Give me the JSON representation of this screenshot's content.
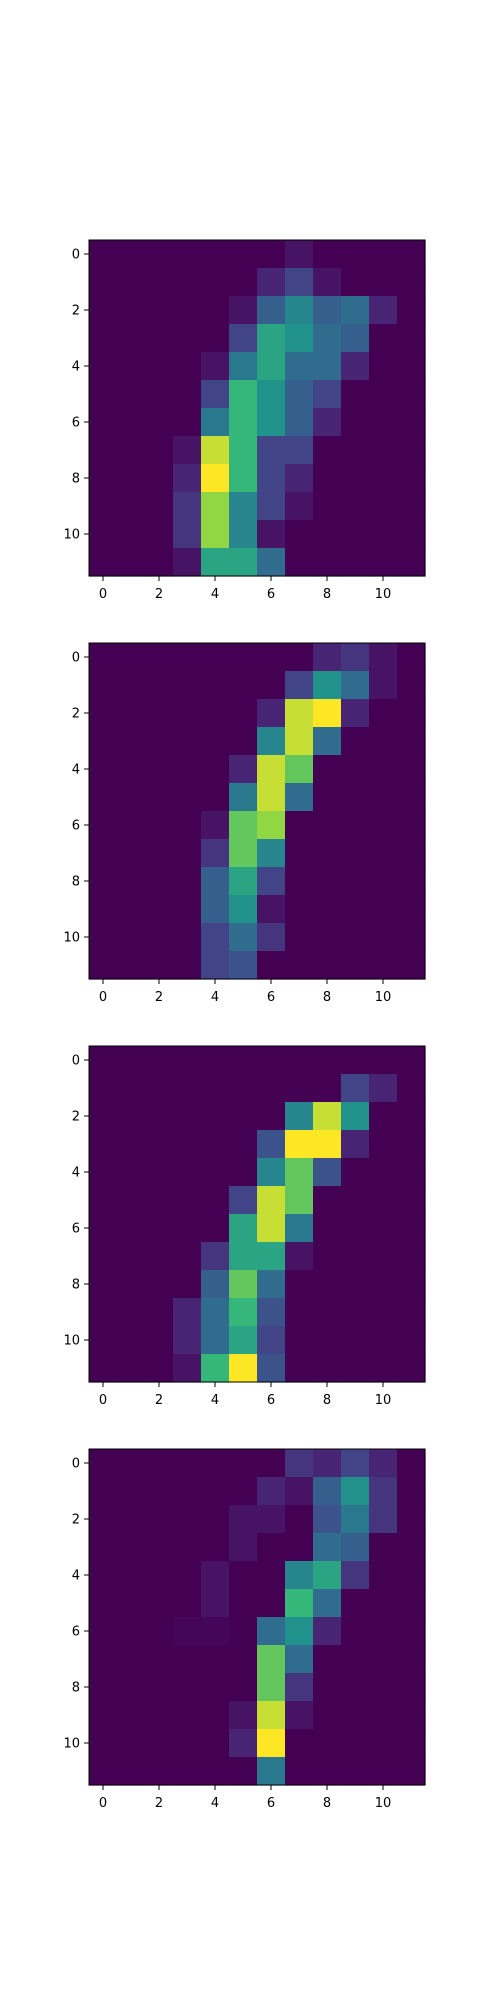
{
  "chart_data": [
    {
      "type": "heatmap",
      "colormap": "viridis",
      "value_range": [
        0,
        16
      ],
      "rows": 12,
      "cols": 12,
      "grid": false,
      "x_ticks": [
        0,
        2,
        4,
        6,
        8,
        10
      ],
      "y_ticks": [
        0,
        2,
        4,
        6,
        8,
        10
      ],
      "x_tick_labels": [
        "0",
        "2",
        "4",
        "6",
        "8",
        "10"
      ],
      "y_tick_labels": [
        "0",
        "2",
        "4",
        "6",
        "8",
        "10"
      ],
      "values": [
        [
          0,
          0,
          0,
          0,
          0,
          0,
          0,
          1,
          0,
          0,
          0,
          0
        ],
        [
          0,
          0,
          0,
          0,
          0,
          0,
          2,
          4,
          1,
          0,
          0,
          0
        ],
        [
          0,
          0,
          0,
          0,
          0,
          1,
          6,
          9,
          6,
          7,
          2,
          0
        ],
        [
          0,
          0,
          0,
          0,
          0,
          4,
          11,
          10,
          7,
          6,
          0,
          0
        ],
        [
          0,
          0,
          0,
          0,
          1,
          8,
          11,
          7,
          7,
          2,
          0,
          0
        ],
        [
          0,
          0,
          0,
          0,
          4,
          12,
          10,
          6,
          4,
          0,
          0,
          0
        ],
        [
          0,
          0,
          0,
          0,
          8,
          12,
          10,
          6,
          2,
          0,
          0,
          0
        ],
        [
          0,
          0,
          0,
          1,
          15,
          12,
          4,
          4,
          0,
          0,
          0,
          0
        ],
        [
          0,
          0,
          0,
          2,
          16,
          12,
          4,
          2,
          0,
          0,
          0,
          0
        ],
        [
          0,
          0,
          0,
          3,
          14,
          9,
          4,
          1,
          0,
          0,
          0,
          0
        ],
        [
          0,
          0,
          0,
          3,
          14,
          9,
          1,
          0,
          0,
          0,
          0,
          0
        ],
        [
          0,
          0,
          0,
          1,
          11,
          11,
          7,
          0,
          0,
          0,
          0,
          0
        ]
      ]
    },
    {
      "type": "heatmap",
      "colormap": "viridis",
      "value_range": [
        0,
        16
      ],
      "rows": 12,
      "cols": 12,
      "grid": false,
      "x_ticks": [
        0,
        2,
        4,
        6,
        8,
        10
      ],
      "y_ticks": [
        0,
        2,
        4,
        6,
        8,
        10
      ],
      "x_tick_labels": [
        "0",
        "2",
        "4",
        "6",
        "8",
        "10"
      ],
      "y_tick_labels": [
        "0",
        "2",
        "4",
        "6",
        "8",
        "10"
      ],
      "values": [
        [
          0,
          0,
          0,
          0,
          0,
          0,
          0,
          0,
          2,
          3,
          1,
          0
        ],
        [
          0,
          0,
          0,
          0,
          0,
          0,
          0,
          4,
          10,
          7,
          1,
          0
        ],
        [
          0,
          0,
          0,
          0,
          0,
          0,
          2,
          15,
          16,
          2,
          0,
          0
        ],
        [
          0,
          0,
          0,
          0,
          0,
          0,
          9,
          15,
          7,
          0,
          0,
          0
        ],
        [
          0,
          0,
          0,
          0,
          0,
          2,
          15,
          13,
          0,
          0,
          0,
          0
        ],
        [
          0,
          0,
          0,
          0,
          0,
          8,
          15,
          7,
          0,
          0,
          0,
          0
        ],
        [
          0,
          0,
          0,
          0,
          1,
          13,
          14,
          0,
          0,
          0,
          0,
          0
        ],
        [
          0,
          0,
          0,
          0,
          3,
          13,
          9,
          0,
          0,
          0,
          0,
          0
        ],
        [
          0,
          0,
          0,
          0,
          6,
          11,
          4,
          0,
          0,
          0,
          0,
          0
        ],
        [
          0,
          0,
          0,
          0,
          6,
          10,
          1,
          0,
          0,
          0,
          0,
          0
        ],
        [
          0,
          0,
          0,
          0,
          4,
          7,
          3,
          0,
          0,
          0,
          0,
          0
        ],
        [
          0,
          0,
          0,
          0,
          4,
          5,
          0,
          0,
          0,
          0,
          0,
          0
        ]
      ]
    },
    {
      "type": "heatmap",
      "colormap": "viridis",
      "value_range": [
        0,
        16
      ],
      "rows": 12,
      "cols": 12,
      "grid": false,
      "x_ticks": [
        0,
        2,
        4,
        6,
        8,
        10
      ],
      "y_ticks": [
        0,
        2,
        4,
        6,
        8,
        10
      ],
      "x_tick_labels": [
        "0",
        "2",
        "4",
        "6",
        "8",
        "10"
      ],
      "y_tick_labels": [
        "0",
        "2",
        "4",
        "6",
        "8",
        "10"
      ],
      "values": [
        [
          0,
          0,
          0,
          0,
          0,
          0,
          0,
          0,
          0,
          0,
          0,
          0
        ],
        [
          0,
          0,
          0,
          0,
          0,
          0,
          0,
          0,
          0,
          4,
          2,
          0
        ],
        [
          0,
          0,
          0,
          0,
          0,
          0,
          0,
          9,
          15,
          10,
          0,
          0
        ],
        [
          0,
          0,
          0,
          0,
          0,
          0,
          5,
          16,
          16,
          2,
          0,
          0
        ],
        [
          0,
          0,
          0,
          0,
          0,
          0,
          9,
          13,
          5,
          0,
          0,
          0
        ],
        [
          0,
          0,
          0,
          0,
          0,
          4,
          15,
          13,
          0,
          0,
          0,
          0
        ],
        [
          0,
          0,
          0,
          0,
          0,
          11,
          15,
          8,
          0,
          0,
          0,
          0
        ],
        [
          0,
          0,
          0,
          0,
          3,
          11,
          11,
          1,
          0,
          0,
          0,
          0
        ],
        [
          0,
          0,
          0,
          0,
          6,
          13,
          7,
          0,
          0,
          0,
          0,
          0
        ],
        [
          0,
          0,
          0,
          2,
          7,
          12,
          5,
          0,
          0,
          0,
          0,
          0
        ],
        [
          0,
          0,
          0,
          2,
          7,
          11,
          4,
          0,
          0,
          0,
          0,
          0
        ],
        [
          0,
          0,
          0,
          1,
          12,
          16,
          5,
          0,
          0,
          0,
          0,
          0
        ]
      ]
    },
    {
      "type": "heatmap",
      "colormap": "viridis",
      "value_range": [
        0,
        16
      ],
      "rows": 12,
      "cols": 12,
      "grid": false,
      "x_ticks": [
        0,
        2,
        4,
        6,
        8,
        10
      ],
      "y_ticks": [
        0,
        2,
        4,
        6,
        8,
        10
      ],
      "x_tick_labels": [
        "0",
        "2",
        "4",
        "6",
        "8",
        "10"
      ],
      "y_tick_labels": [
        "0",
        "2",
        "4",
        "6",
        "8",
        "10"
      ],
      "values": [
        [
          0,
          0,
          0,
          0,
          0,
          0,
          0,
          3,
          2,
          4,
          2,
          0
        ],
        [
          0,
          0,
          0,
          0,
          0,
          0,
          2,
          1,
          6,
          10,
          3,
          0
        ],
        [
          0,
          0,
          0,
          0,
          0,
          1,
          1,
          0,
          5,
          8,
          3,
          0
        ],
        [
          0,
          0,
          0,
          0,
          0,
          1,
          0,
          0,
          7,
          6,
          0,
          0
        ],
        [
          0,
          0,
          0,
          0,
          1,
          0,
          0,
          9,
          11,
          3,
          0,
          0
        ],
        [
          0,
          0,
          0,
          0,
          1,
          0,
          0,
          12,
          7,
          0,
          0,
          0
        ],
        [
          0,
          0,
          0,
          0.3,
          0.3,
          0,
          7,
          10,
          2,
          0,
          0,
          0
        ],
        [
          0,
          0,
          0,
          0,
          0,
          0,
          13,
          7,
          0,
          0,
          0,
          0
        ],
        [
          0,
          0,
          0,
          0,
          0,
          0,
          13,
          3,
          0,
          0,
          0,
          0
        ],
        [
          0,
          0,
          0,
          0,
          0,
          1,
          15,
          1,
          0,
          0,
          0,
          0
        ],
        [
          0,
          0,
          0,
          0,
          0,
          2,
          16,
          0,
          0,
          0,
          0,
          0
        ],
        [
          0,
          0,
          0,
          0,
          0,
          0,
          8,
          0,
          0,
          0,
          0,
          0
        ]
      ]
    }
  ]
}
